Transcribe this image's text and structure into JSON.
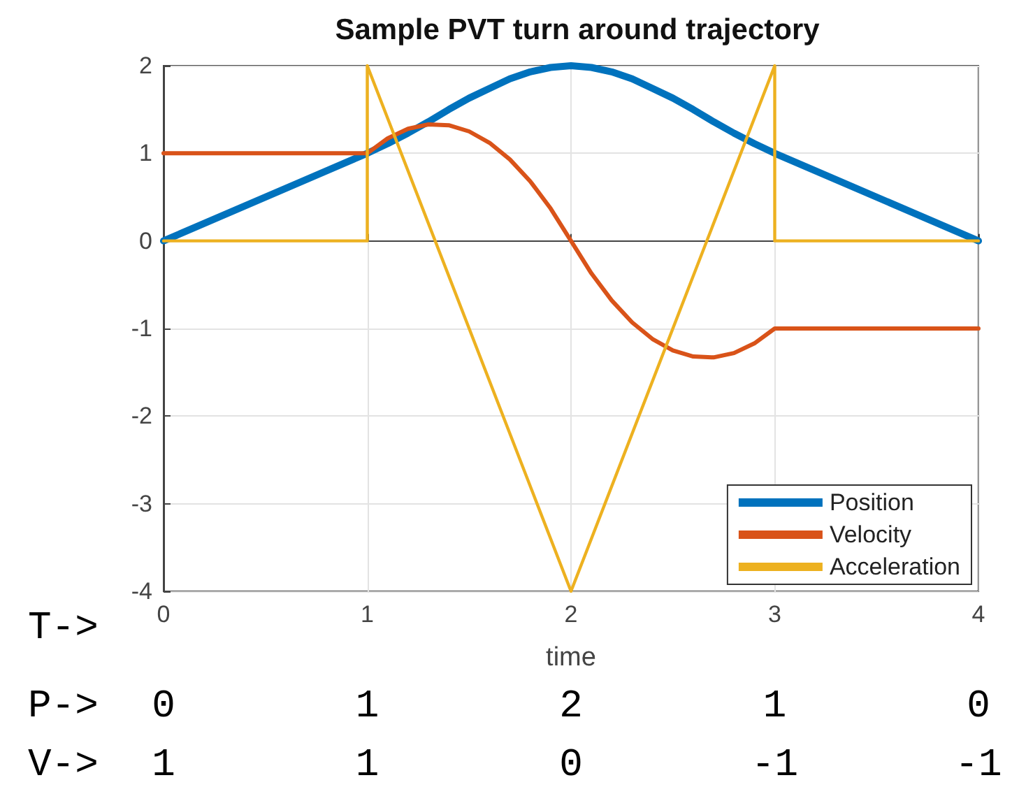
{
  "chart_data": {
    "type": "line",
    "title": "Sample PVT turn around trajectory",
    "xlabel": "time",
    "xlim": [
      0,
      4
    ],
    "ylim": [
      -4,
      2
    ],
    "xticks": [
      0,
      1,
      2,
      3,
      4
    ],
    "yticks": [
      -4,
      -3,
      -2,
      -1,
      0,
      1,
      2
    ],
    "grid": true,
    "legend": "bottom right",
    "marker": "none",
    "line_style": "solid",
    "series": [
      {
        "name": "Position",
        "color": "#0072bd",
        "x": [
          0,
          1,
          1.1,
          1.2,
          1.3,
          1.4,
          1.5,
          1.6,
          1.7,
          1.8,
          1.9,
          2,
          2.1,
          2.2,
          2.3,
          2.4,
          2.5,
          2.6,
          2.7,
          2.8,
          2.9,
          3,
          4
        ],
        "values": [
          0,
          1,
          1.11,
          1.23,
          1.36,
          1.5,
          1.63,
          1.74,
          1.85,
          1.93,
          1.98,
          2,
          1.98,
          1.93,
          1.85,
          1.74,
          1.63,
          1.5,
          1.36,
          1.23,
          1.11,
          1,
          0
        ]
      },
      {
        "name": "Velocity",
        "color": "#d95319",
        "x": [
          0,
          1,
          1.1,
          1.2,
          1.3,
          1.4,
          1.5,
          1.6,
          1.7,
          1.8,
          1.9,
          2,
          2.1,
          2.2,
          2.3,
          2.4,
          2.5,
          2.6,
          2.7,
          2.8,
          2.9,
          3,
          4
        ],
        "values": [
          1,
          1,
          1.17,
          1.28,
          1.33,
          1.32,
          1.25,
          1.12,
          0.93,
          0.68,
          0.37,
          0,
          -0.37,
          -0.68,
          -0.93,
          -1.12,
          -1.25,
          -1.32,
          -1.33,
          -1.28,
          -1.17,
          -1,
          -1
        ]
      },
      {
        "name": "Acceleration",
        "color": "#edb120",
        "x": [
          0,
          1,
          1,
          2,
          3,
          3,
          4
        ],
        "values": [
          0,
          0,
          2,
          -4,
          2,
          0,
          0
        ]
      }
    ],
    "annotations": [
      "T->",
      "P-> 0 1 2 1 0",
      "V-> 1 1 0 -1 -1"
    ]
  }
}
